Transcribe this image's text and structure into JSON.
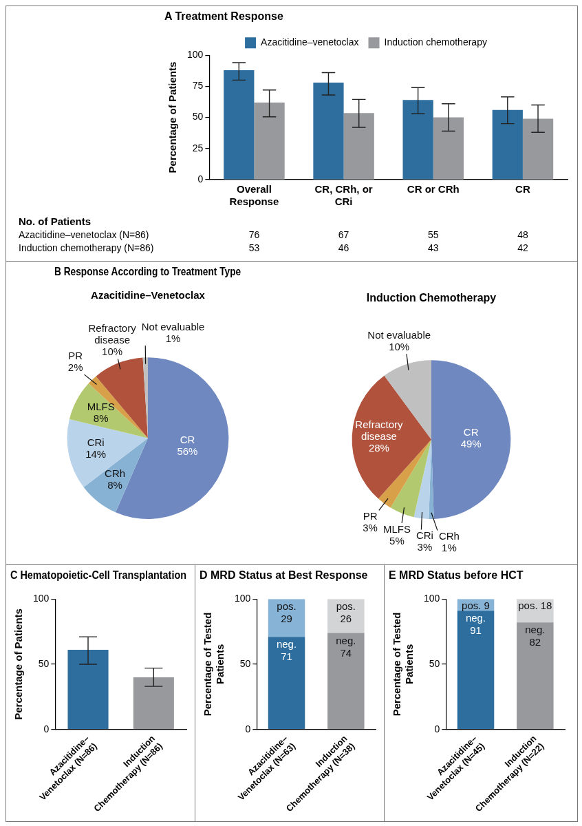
{
  "chart_data": [
    {
      "type": "bar",
      "title": "A Treatment Response",
      "categories": [
        "Overall Response",
        "CR, CRh, or CRi",
        "CR or CRh",
        "CR"
      ],
      "ylabel": "Percentage of Patients",
      "ylim": [
        0,
        100
      ],
      "yticks": [
        0,
        25,
        50,
        75,
        100
      ],
      "legend": "top",
      "annotations": [
        "No. of Patients",
        "Azacitidine–venetoclax (N=86)",
        "76",
        "67",
        "55",
        "48",
        "Induction chemotherapy (N=86)",
        "53",
        "46",
        "43",
        "42"
      ],
      "series": [
        {
          "name": "Azacitidine–venetoclax",
          "color": "#2e6e9e",
          "values": [
            88,
            78,
            64,
            56
          ],
          "errors": [
            [
              80,
              94
            ],
            [
              68,
              86
            ],
            [
              53,
              74
            ],
            [
              45,
              66.5
            ]
          ]
        },
        {
          "name": "Induction chemotherapy",
          "color": "#97999c",
          "values": [
            62,
            53.5,
            50,
            49
          ],
          "errors": [
            [
              50.5,
              72
            ],
            [
              42,
              64.5
            ],
            [
              39,
              61
            ],
            [
              38,
              60
            ]
          ]
        }
      ]
    },
    {
      "type": "pie",
      "title": "B Response According to Treatment Type",
      "subtitle": "Azacitidine–Venetoclax",
      "categories": [
        "CR",
        "CRh",
        "CRi",
        "MLFS",
        "PR",
        "Refractory disease",
        "Not evaluable"
      ],
      "values": [
        56,
        8,
        14,
        8,
        2,
        10,
        1
      ],
      "value_labels": [
        "56%",
        "8%",
        "14%",
        "8%",
        "2%",
        "10%",
        "1%"
      ],
      "colors": [
        "#6f88c0",
        "#88b2d4",
        "#b9d3ea",
        "#b3c96f",
        "#d8a048",
        "#b0523c",
        "#c0c0c0"
      ]
    },
    {
      "type": "pie",
      "title": "Induction Chemotherapy",
      "categories": [
        "CR",
        "CRh",
        "CRi",
        "MLFS",
        "PR",
        "Refractory disease",
        "Not evaluable"
      ],
      "values": [
        49,
        1,
        3,
        5,
        3,
        28,
        10
      ],
      "value_labels": [
        "49%",
        "1%",
        "3%",
        "5%",
        "3%",
        "28%",
        "10%"
      ],
      "colors": [
        "#6f88c0",
        "#88b2d4",
        "#b9d3ea",
        "#b3c96f",
        "#d8a048",
        "#b0523c",
        "#c0c0c0"
      ]
    },
    {
      "type": "bar",
      "title": "C Hematopoietic-Cell Transplantation",
      "categories": [
        "Azacitidine–Venetoclax (N=86)",
        "Induction Chemotherapy (N=86)"
      ],
      "values": [
        61,
        40
      ],
      "colors": [
        "#2e6e9e",
        "#97999c"
      ],
      "errors": [
        [
          50,
          71
        ],
        [
          33,
          47
        ]
      ],
      "ylabel": "Percentage of Patients",
      "ylim": [
        0,
        100
      ],
      "yticks": [
        0,
        50,
        100
      ]
    },
    {
      "type": "bar",
      "title": "D MRD Status at Best Response",
      "categories": [
        "Azacitidine–Venetoclax (N=63)",
        "Induction Chemotherapy (N=38)"
      ],
      "stacked": true,
      "data_labels": true,
      "ylabel": "Percentage of Tested Patients",
      "ylim": [
        0,
        100
      ],
      "yticks": [
        0,
        50,
        100
      ],
      "series": [
        {
          "name": "neg.",
          "colors": [
            "#2e6e9e",
            "#97999c"
          ],
          "values": [
            71,
            74
          ]
        },
        {
          "name": "pos.",
          "colors": [
            "#87b3d6",
            "#d3d4d6"
          ],
          "values": [
            29,
            26
          ]
        }
      ]
    },
    {
      "type": "bar",
      "title": "E MRD Status before HCT",
      "categories": [
        "Azacitidine–Venetoclax (N=45)",
        "Induction Chemotherapy (N=22)"
      ],
      "stacked": true,
      "data_labels": true,
      "ylabel": "Percentage of Tested Patients",
      "ylim": [
        0,
        100
      ],
      "yticks": [
        0,
        50,
        100
      ],
      "series": [
        {
          "name": "neg.",
          "colors": [
            "#2e6e9e",
            "#97999c"
          ],
          "values": [
            91,
            82
          ]
        },
        {
          "name": "pos.",
          "colors": [
            "#87b3d6",
            "#d3d4d6"
          ],
          "values": [
            9,
            18
          ]
        }
      ]
    }
  ]
}
